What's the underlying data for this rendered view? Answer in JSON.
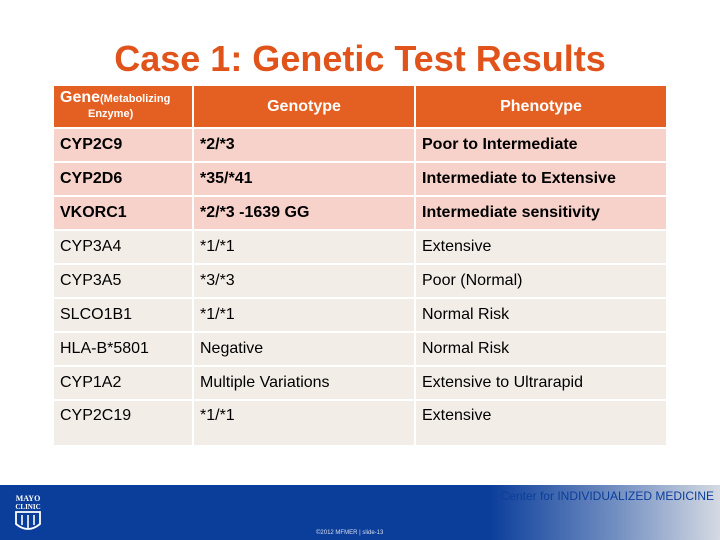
{
  "slide": {
    "title": "Case 1: Genetic Test Results"
  },
  "table": {
    "headers": {
      "gene": "Gene",
      "gene_sub1": "(Metabolizing",
      "gene_sub2": "Enzyme)",
      "genotype": "Genotype",
      "phenotype": "Phenotype"
    },
    "rows": [
      {
        "gene": "CYP2C9",
        "genotype": "*2/*3",
        "phenotype": "Poor to Intermediate"
      },
      {
        "gene": "CYP2D6",
        "genotype": "*35/*41",
        "phenotype": "Intermediate to Extensive"
      },
      {
        "gene": "VKORC1",
        "genotype": "*2/*3 -1639 GG",
        "phenotype": "Intermediate sensitivity"
      },
      {
        "gene": "CYP3A4",
        "genotype": "*1/*1",
        "phenotype": "Extensive"
      },
      {
        "gene": "CYP3A5",
        "genotype": "*3/*3",
        "phenotype": "Poor (Normal)"
      },
      {
        "gene": "SLCO1B1",
        "genotype": "*1/*1",
        "phenotype": "Normal Risk"
      },
      {
        "gene": "HLA-B*5801",
        "genotype": "Negative",
        "phenotype": "Normal Risk"
      },
      {
        "gene": "CYP1A2",
        "genotype": "Multiple Variations",
        "phenotype": "Extensive to Ultrarapid"
      },
      {
        "gene": "CYP2C19",
        "genotype": "*1/*1",
        "phenotype": "Extensive"
      }
    ]
  },
  "footer": {
    "center_label": "Center for INDIVIDUALIZED MEDICINE",
    "copyright": "©2012 MFMER | slide-13",
    "logo_text_1": "MAYO",
    "logo_text_2": "CLINIC"
  },
  "colors": {
    "title": "#e0541c",
    "header_bg": "#e46022",
    "bold_row_bg": "#f6d2ca",
    "plain_row_bg": "#f3ede8",
    "footer_bar": "#0b3e9b"
  }
}
